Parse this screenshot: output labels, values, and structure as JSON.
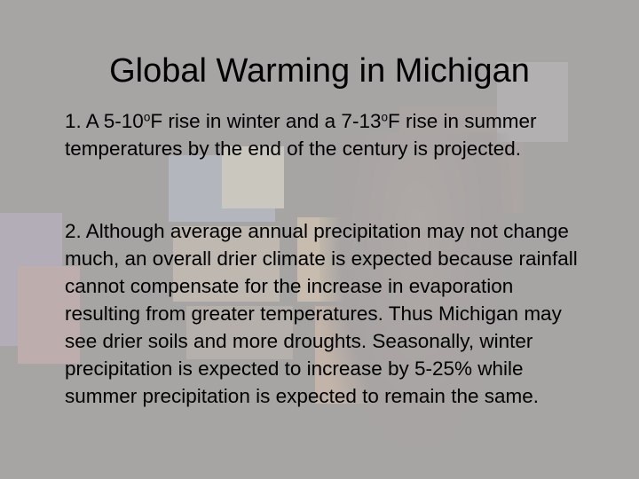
{
  "title": "Global Warming in Michigan",
  "points": [
    {
      "pre": "1. A 5-10",
      "sup1": "o",
      "mid": "F rise in winter and a 7-13",
      "sup2": "o",
      "post": "F rise in summer temperatures by the end of the century is projected."
    },
    {
      "text": "2. Although average annual precipitation may not change much, an overall drier climate is expected because rainfall cannot compensate for the increase in evaporation resulting from greater temperatures. Thus Michigan may see drier soils and more droughts. Seasonally, winter precipitation is expected to increase by 5-25% while summer precipitation is expected to remain the same."
    }
  ]
}
